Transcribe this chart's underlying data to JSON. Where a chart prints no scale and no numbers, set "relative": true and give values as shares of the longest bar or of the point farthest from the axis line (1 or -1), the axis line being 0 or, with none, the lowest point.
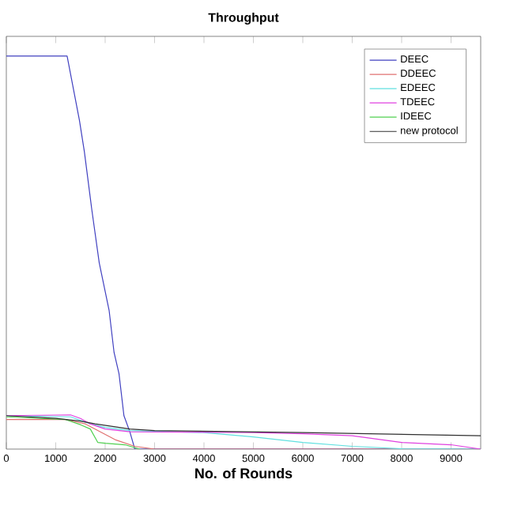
{
  "chart_data": {
    "type": "line",
    "title": "Throughput",
    "xlabel": "No. of Rounds",
    "relative": true,
    "xlim": [
      0,
      9600
    ],
    "xticks": [
      0,
      1000,
      2000,
      3000,
      4000,
      5000,
      6000,
      7000,
      8000,
      9000
    ],
    "legend": "top right",
    "grid": false,
    "marker": "none",
    "line_style": "solid",
    "series": [
      {
        "name": "DEEC",
        "color": "#4040c0",
        "x": [
          0,
          1230,
          1480,
          1580,
          1730,
          1880,
          2080,
          2180,
          2280,
          2380,
          2500,
          2600,
          9600
        ],
        "values": [
          1.0,
          1.0,
          0.836,
          0.756,
          0.609,
          0.474,
          0.353,
          0.246,
          0.192,
          0.085,
          0.044,
          0.0,
          0.0
        ]
      },
      {
        "name": "DDEEC",
        "color": "#e07070",
        "x": [
          0,
          1200,
          1600,
          1900,
          2200,
          2600,
          3000,
          9600
        ],
        "values": [
          0.075,
          0.075,
          0.064,
          0.044,
          0.024,
          0.007,
          0.0,
          0.0
        ]
      },
      {
        "name": "EDEEC",
        "color": "#60e0e0",
        "x": [
          0,
          1300,
          1700,
          2000,
          2500,
          4000,
          5000,
          6000,
          7000,
          8000,
          9600
        ],
        "values": [
          0.085,
          0.082,
          0.064,
          0.055,
          0.047,
          0.042,
          0.031,
          0.017,
          0.007,
          0.001,
          0.0
        ]
      },
      {
        "name": "TDEEC",
        "color": "#e040e0",
        "x": [
          0,
          1300,
          1500,
          1700,
          2000,
          2500,
          5000,
          6000,
          7000,
          8000,
          9000,
          9600
        ],
        "values": [
          0.085,
          0.087,
          0.078,
          0.064,
          0.051,
          0.044,
          0.042,
          0.039,
          0.034,
          0.017,
          0.011,
          0.0
        ]
      },
      {
        "name": "IDEEC",
        "color": "#50d050",
        "x": [
          0,
          1200,
          1500,
          1700,
          1850,
          2000,
          2400,
          2700
        ],
        "values": [
          0.082,
          0.075,
          0.062,
          0.051,
          0.017,
          0.015,
          0.011,
          0.0
        ]
      },
      {
        "name": "new protocol",
        "color": "#303030",
        "x": [
          0,
          1000,
          1500,
          1800,
          2500,
          3000,
          6000,
          9600
        ],
        "values": [
          0.085,
          0.078,
          0.071,
          0.064,
          0.051,
          0.047,
          0.042,
          0.034
        ]
      }
    ]
  }
}
